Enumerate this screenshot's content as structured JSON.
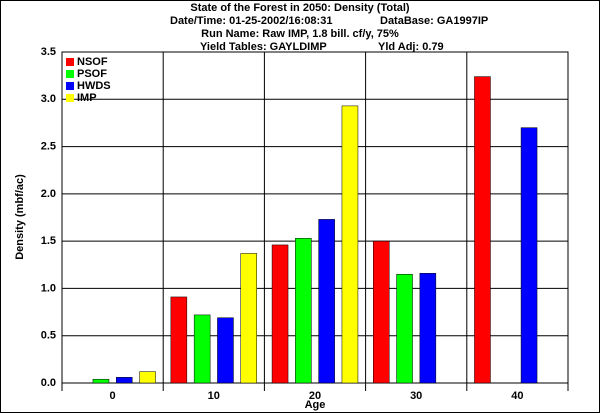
{
  "chart_data": {
    "type": "bar",
    "title": "State of the Forest in 2050: Density (Total)",
    "date_time": "Date/Time: 01-25-2002/16:08:31",
    "database": "DataBase: GA1997IP",
    "run_name": "Run Name: Raw IMP, 1.8 bill. cf/y, 75%",
    "yield_tables": "Yield Tables: GAYLDIMP",
    "yld_adj": "Yld Adj: 0.79",
    "x_label": "Age",
    "y_label": "Density (mbf/ac)",
    "categories": [
      "0",
      "10",
      "20",
      "30",
      "40"
    ],
    "series": [
      {
        "name": "NSOF",
        "color": "#ff0000",
        "values": [
          0,
          0.91,
          1.46,
          1.5,
          3.24
        ]
      },
      {
        "name": "PSOF",
        "color": "#00ff00",
        "values": [
          0.04,
          0.72,
          1.53,
          1.15,
          null
        ]
      },
      {
        "name": "HWDS",
        "color": "#0000ff",
        "values": [
          0.06,
          0.69,
          1.73,
          1.16,
          2.7
        ]
      },
      {
        "name": "IMP",
        "color": "#ffff00",
        "values": [
          0.12,
          1.37,
          2.93,
          null,
          null
        ]
      }
    ],
    "ylim": [
      0,
      3.5
    ],
    "yticks": [
      {
        "value": 0,
        "label": "0.0"
      },
      {
        "value": 0.5,
        "label": "0.5"
      },
      {
        "value": 1,
        "label": "1.0"
      },
      {
        "value": 1.5,
        "label": "1.5"
      },
      {
        "value": 2,
        "label": "2.0"
      },
      {
        "value": 2.5,
        "label": "2.5"
      },
      {
        "value": 3,
        "label": "3.0"
      },
      {
        "value": 3.5,
        "label": "3.5"
      }
    ],
    "grid": true,
    "legend": "upper-left"
  }
}
